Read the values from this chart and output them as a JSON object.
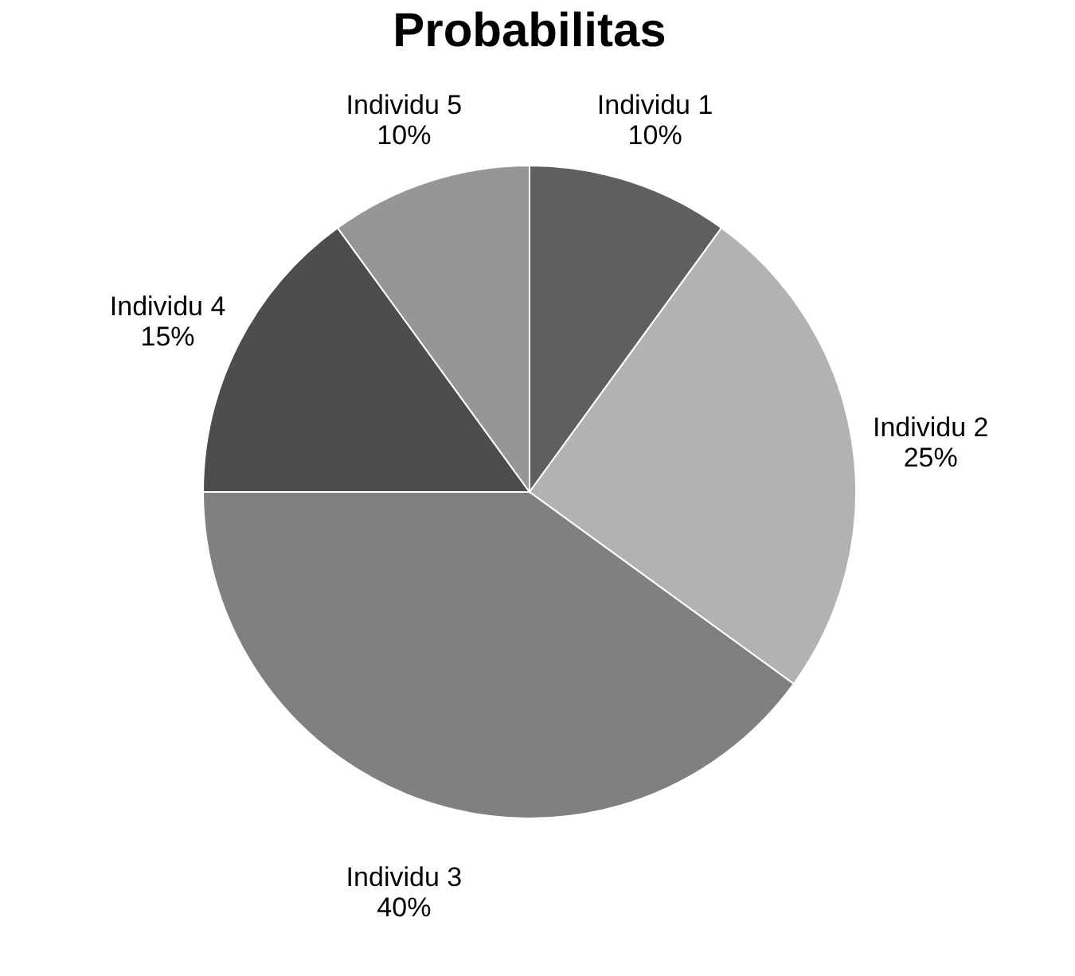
{
  "chart_data": {
    "type": "pie",
    "title": "Probabilitas",
    "categories": [
      "Individu 1",
      "Individu 2",
      "Individu 3",
      "Individu 4",
      "Individu 5"
    ],
    "values": [
      10,
      25,
      40,
      15,
      10
    ],
    "value_labels": [
      "10%",
      "25%",
      "40%",
      "15%",
      "10%"
    ],
    "colors": [
      "#5f5f5f",
      "#b2b2b2",
      "#808080",
      "#4d4d4d",
      "#969696"
    ],
    "legend": false
  }
}
